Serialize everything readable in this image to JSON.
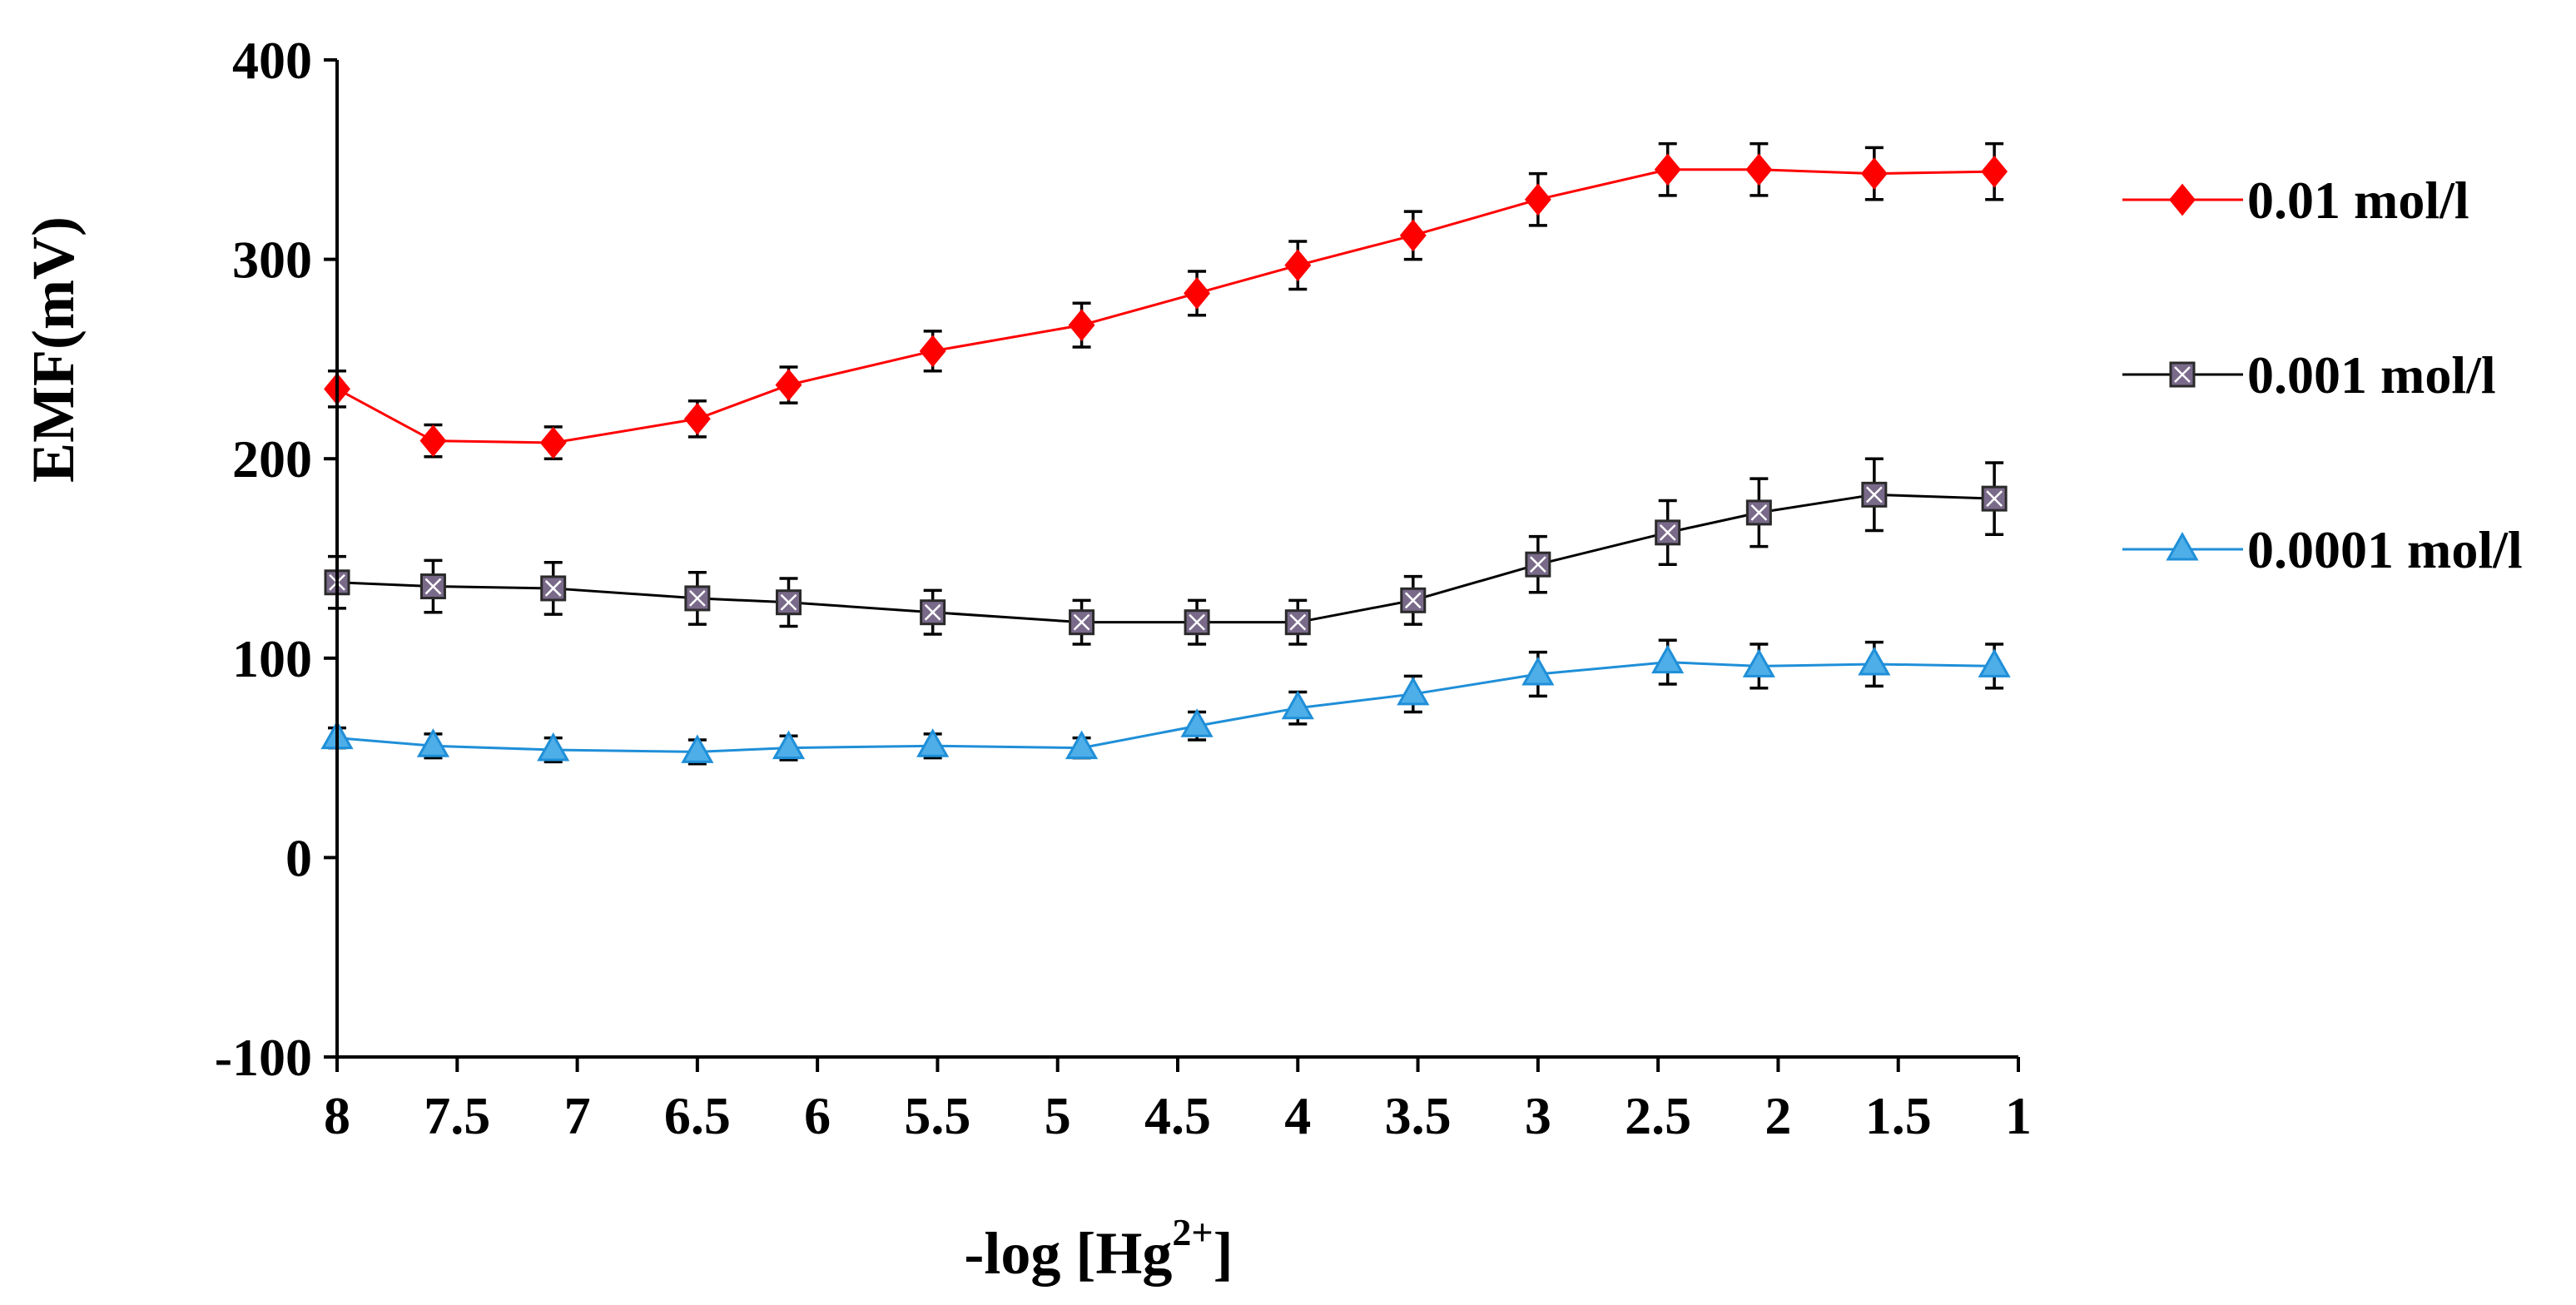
{
  "chart_data": {
    "type": "line",
    "title": "",
    "xlabel_prefix": "-log [Hg",
    "xlabel_sup": "2+",
    "xlabel_suffix": "]",
    "ylabel": "EMF(mV)",
    "xlim": [
      8,
      1
    ],
    "ylim": [
      -100,
      400
    ],
    "x_ticks": [
      8,
      7.5,
      7,
      6.5,
      6,
      5.5,
      5,
      4.5,
      4,
      3.5,
      3,
      2.5,
      2,
      1.5,
      1
    ],
    "x_tick_labels": [
      "8",
      "7.5",
      "7",
      "6.5",
      "6",
      "5.5",
      "5",
      "4.5",
      "4",
      "3.5",
      "3",
      "2.5",
      "2",
      "1.5",
      "1"
    ],
    "y_ticks": [
      -100,
      0,
      100,
      200,
      300,
      400
    ],
    "y_tick_labels": [
      "-100",
      "0",
      "100",
      "200",
      "300",
      "400"
    ],
    "grid": false,
    "legend_position": "right",
    "x": [
      8,
      7.6,
      7.1,
      6.5,
      6.12,
      5.52,
      4.9,
      4.42,
      4,
      3.52,
      3.0,
      2.46,
      2.08,
      1.6,
      1.1
    ],
    "series": [
      {
        "name": "0.01 mol/l",
        "color": "#ff0000",
        "marker": "diamond",
        "values": [
          235,
          209,
          208,
          220,
          237,
          254,
          267,
          283,
          297,
          312,
          330,
          345,
          345,
          343,
          344
        ],
        "errors": [
          9,
          8,
          8,
          9,
          9,
          10,
          11,
          11,
          12,
          12,
          13,
          13,
          13,
          13,
          14
        ]
      },
      {
        "name": "0.001 mol/l",
        "color": "#000000",
        "marker": "square-x",
        "marker_fill": "#7a6a8a",
        "values": [
          138,
          136,
          135,
          130,
          128,
          123,
          118,
          118,
          118,
          129,
          147,
          163,
          173,
          182,
          180
        ],
        "errors": [
          13,
          13,
          13,
          13,
          12,
          11,
          11,
          11,
          11,
          12,
          14,
          16,
          17,
          18,
          18
        ]
      },
      {
        "name": "0.0001 mol/l",
        "color": "#1f8fd8",
        "marker": "triangle",
        "marker_fill": "#4eaee8",
        "values": [
          60,
          56,
          54,
          53,
          55,
          56,
          55,
          66,
          75,
          82,
          92,
          98,
          96,
          97,
          96
        ],
        "errors": [
          5,
          6,
          6,
          6,
          6,
          6,
          5,
          7,
          8,
          9,
          11,
          11,
          11,
          11,
          11
        ]
      }
    ]
  }
}
